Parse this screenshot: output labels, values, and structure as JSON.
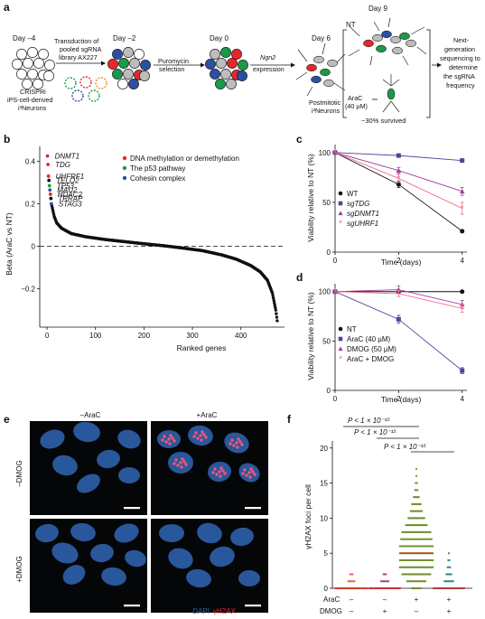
{
  "panel_a": {
    "letter": "a",
    "days": [
      "Day –4",
      "Day –2",
      "Day 0",
      "Day 6",
      "Day 9"
    ],
    "start_label": [
      "CRISPRi",
      "iPS-cell-derived",
      "i³Neurons"
    ],
    "step1": [
      "Transduction of",
      "pooled sgRNA",
      "library AX227"
    ],
    "step2": [
      "Puromycin",
      "selection"
    ],
    "step3_italic": "Ngn2",
    "step3": "expression",
    "postmitotic": [
      "Postmitotic",
      "i³Neurons"
    ],
    "nt_label": "NT",
    "arac_label": [
      "AraC",
      "(40 µM)"
    ],
    "survived": "~30% survived",
    "ngs": [
      "Next-",
      "generation",
      "sequencing to",
      "determine",
      "the sgRNA",
      "frequency"
    ],
    "colors": {
      "red": "#e8262b",
      "green": "#1a9a48",
      "blue": "#2b4fa3",
      "grey": "#bdbdbd",
      "orange": "#f28b2c"
    }
  },
  "panel_b": {
    "letter": "b",
    "chart_data": {
      "type": "scatter",
      "xlabel": "Ranked genes",
      "ylabel": "Beta (AraC vs NT)",
      "xticks": [
        0,
        100,
        200,
        300,
        400
      ],
      "yticks": [
        -0.2,
        0,
        0.2,
        0.4
      ],
      "xlim": [
        -15,
        490
      ],
      "ylim": [
        -0.38,
        0.47
      ],
      "labelled_genes": [
        {
          "gene": "DNMT1",
          "rank": 1,
          "beta": 0.425,
          "color": "#e8262b"
        },
        {
          "gene": "TDG",
          "rank": 2,
          "beta": 0.385,
          "color": "#e8262b"
        },
        {
          "gene": "UHFRF1",
          "rank": 3,
          "beta": 0.33,
          "color": "#e8262b"
        },
        {
          "gene": "TELO2",
          "rank": 4,
          "beta": 0.31,
          "color": "#111111"
        },
        {
          "gene": "TP53",
          "rank": 5,
          "beta": 0.285,
          "color": "#1a9a48"
        },
        {
          "gene": "MAU2",
          "rank": 6,
          "beta": 0.265,
          "color": "#2b4fa3"
        },
        {
          "gene": "HDAC2",
          "rank": 7,
          "beta": 0.245,
          "color": "#e8262b"
        },
        {
          "gene": "TRRAP",
          "rank": 8,
          "beta": 0.225,
          "color": "#111111"
        },
        {
          "gene": "STAG3",
          "rank": 9,
          "beta": 0.2,
          "color": "#2b4fa3"
        }
      ],
      "legend": [
        {
          "label": "DNA methylation or demethylation",
          "color": "#e8262b"
        },
        {
          "label": "The p53 pathway",
          "color": "#1a9a48"
        },
        {
          "label": "Cohesin complex",
          "color": "#2b4fa3"
        }
      ],
      "total_genes": 475,
      "curve": [
        [
          10,
          0.19
        ],
        [
          15,
          0.14
        ],
        [
          20,
          0.11
        ],
        [
          30,
          0.085
        ],
        [
          50,
          0.06
        ],
        [
          80,
          0.045
        ],
        [
          120,
          0.032
        ],
        [
          160,
          0.022
        ],
        [
          200,
          0.012
        ],
        [
          240,
          0.003
        ],
        [
          280,
          -0.008
        ],
        [
          320,
          -0.02
        ],
        [
          360,
          -0.04
        ],
        [
          390,
          -0.06
        ],
        [
          420,
          -0.09
        ],
        [
          440,
          -0.12
        ],
        [
          455,
          -0.16
        ],
        [
          465,
          -0.22
        ],
        [
          472,
          -0.3
        ],
        [
          475,
          -0.35
        ]
      ]
    }
  },
  "panel_c": {
    "letter": "c",
    "chart_data": {
      "type": "line",
      "xlabel": "Time (days)",
      "ylabel": "Viability relative to NT (%)",
      "x": [
        0,
        2,
        4
      ],
      "xticks": [
        0,
        2,
        4
      ],
      "yticks": [
        0,
        50,
        100
      ],
      "ylim": [
        0,
        108
      ],
      "series": [
        {
          "name": "WT",
          "italic": false,
          "marker": "circle",
          "color": "#111111",
          "values": [
            100,
            68,
            21
          ],
          "err": [
            0,
            3,
            1
          ]
        },
        {
          "name": "sgTDG",
          "italic": true,
          "marker": "square",
          "color": "#5a3f98",
          "values": [
            100,
            97,
            92
          ],
          "err": [
            0,
            1,
            1
          ]
        },
        {
          "name": "sgDNMT1",
          "italic": true,
          "marker": "triangle",
          "color": "#a0409a",
          "values": [
            100,
            82,
            61
          ],
          "err": [
            0,
            3,
            4
          ]
        },
        {
          "name": "sgUHRF1",
          "italic": true,
          "marker": "star",
          "color": "#ee6f8e",
          "values": [
            100,
            74,
            44
          ],
          "err": [
            0,
            4,
            6
          ]
        }
      ]
    }
  },
  "panel_d": {
    "letter": "d",
    "chart_data": {
      "type": "line",
      "xlabel": "Time (days)",
      "ylabel": "Viability relative to NT (%)",
      "x": [
        0,
        2,
        4
      ],
      "xticks": [
        0,
        2,
        4
      ],
      "yticks": [
        0,
        50,
        100
      ],
      "ylim": [
        0,
        108
      ],
      "series": [
        {
          "name": "NT",
          "marker": "circle",
          "color": "#111111",
          "values": [
            100,
            100,
            100
          ],
          "err": [
            0,
            1,
            1
          ]
        },
        {
          "name": "AraC (40 µM)",
          "marker": "square",
          "color": "#5a3f98",
          "values": [
            100,
            72,
            20
          ],
          "err": [
            0,
            4,
            3
          ]
        },
        {
          "name": "DMOG (50 µM)",
          "marker": "triangle",
          "color": "#a0409a",
          "values": [
            100,
            102,
            87
          ],
          "err": [
            0,
            4,
            4
          ]
        },
        {
          "name": "AraC + DMOG",
          "marker": "star",
          "color": "#ee6f8e",
          "values": [
            100,
            98,
            83
          ],
          "err": [
            0,
            3,
            4
          ]
        }
      ]
    }
  },
  "panel_e": {
    "letter": "e",
    "col_labels": [
      "–AraC",
      "+AraC"
    ],
    "row_labels": [
      "–DMOG",
      "+DMOG"
    ],
    "stain_dapi": "DAPI",
    "stain_h2ax": "γH2AX",
    "colors": {
      "dapi": "#2d5ea8",
      "h2ax": "#f2557a",
      "bg": "#050608"
    }
  },
  "panel_f": {
    "letter": "f",
    "chart_data": {
      "type": "scatter",
      "ylabel": "γH2AX foci per cell",
      "yticks": [
        0,
        5,
        10,
        15,
        20
      ],
      "ylim": [
        0,
        21
      ],
      "row_labels": [
        "AraC",
        "DMOG"
      ],
      "groups": [
        {
          "arac": "–",
          "dmog": "–",
          "median": 0,
          "color": "#e26a4a",
          "max": 2
        },
        {
          "arac": "–",
          "dmog": "+",
          "median": 0,
          "color": "#a24a8a",
          "max": 2
        },
        {
          "arac": "+",
          "dmog": "–",
          "median": 5,
          "color": "#6f8f2a",
          "max": 17
        },
        {
          "arac": "+",
          "dmog": "+",
          "median": 0,
          "color": "#2a8f8a",
          "max": 5
        }
      ],
      "p_labels": [
        "P < 1 × 10⁻¹⁵",
        "P < 1 × 10⁻¹⁵",
        "P < 1 × 10⁻¹⁵"
      ]
    }
  }
}
